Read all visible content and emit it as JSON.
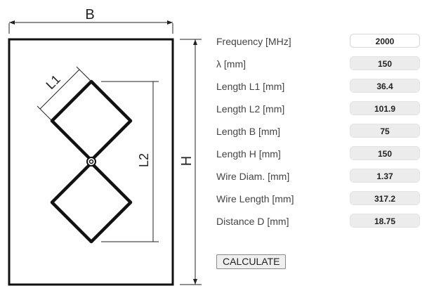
{
  "diagram": {
    "label_b": "B",
    "label_h": "H",
    "label_l1": "L1",
    "label_l2": "L2"
  },
  "fields": [
    {
      "label": "Frequency [MHz]",
      "value": "2000",
      "editable": true
    },
    {
      "label": "λ [mm]",
      "value": "150",
      "editable": false
    },
    {
      "label": "Length L1 [mm]",
      "value": "36.4",
      "editable": false
    },
    {
      "label": "Length L2 [mm]",
      "value": "101.9",
      "editable": false
    },
    {
      "label": "Length B [mm]",
      "value": "75",
      "editable": false
    },
    {
      "label": "Length H [mm]",
      "value": "150",
      "editable": false
    },
    {
      "label": "Wire Diam. [mm]",
      "value": "1.37",
      "editable": false
    },
    {
      "label": "Wire Length [mm]",
      "value": "317.2",
      "editable": false
    },
    {
      "label": "Distance D [mm]",
      "value": "18.75",
      "editable": false
    }
  ],
  "calculate_label": "CALCULATE"
}
